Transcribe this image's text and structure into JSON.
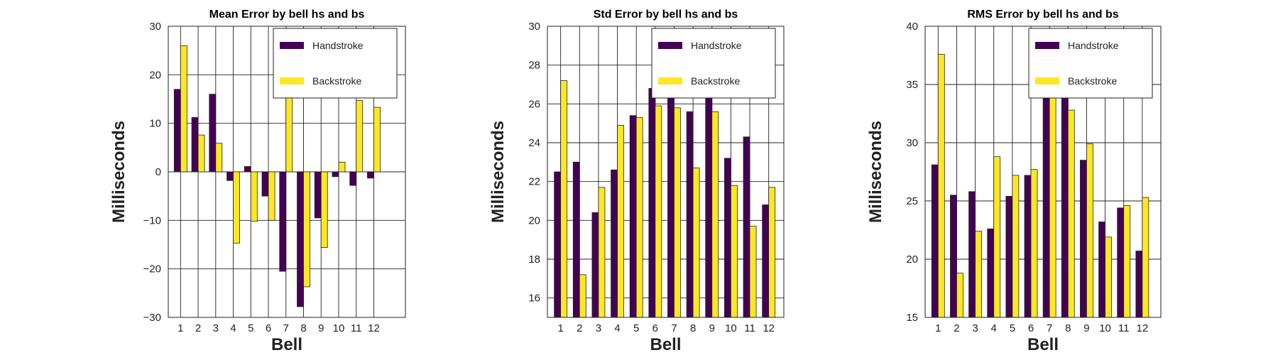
{
  "chart_data": [
    {
      "type": "bar",
      "title": "Mean Error by bell hs and bs",
      "xlabel": "Bell",
      "ylabel": "Milliseconds",
      "categories": [
        "1",
        "2",
        "3",
        "4",
        "5",
        "6",
        "7",
        "8",
        "9",
        "10",
        "11",
        "12"
      ],
      "ylim": [
        -30,
        30
      ],
      "yticks": [
        -30,
        -20,
        -10,
        0,
        10,
        20,
        30
      ],
      "yticklabels": [
        "−30",
        "−20",
        "−10",
        "0",
        "10",
        "20",
        "30"
      ],
      "xlim": [
        0.3,
        13.8
      ],
      "grid": true,
      "legend_position": "top-right",
      "series": [
        {
          "name": "Handstroke",
          "color": "#440154",
          "values": [
            17.0,
            11.2,
            16.0,
            -1.8,
            1.1,
            -5.0,
            -20.5,
            -27.8,
            -9.5,
            -1.0,
            -2.8,
            -1.3
          ]
        },
        {
          "name": "Backstroke",
          "color": "#FDE725",
          "values": [
            26.0,
            7.6,
            5.9,
            -14.7,
            -10.2,
            -10.0,
            25.5,
            -23.7,
            -15.6,
            2.0,
            14.7,
            13.3
          ]
        }
      ]
    },
    {
      "type": "bar",
      "title": "Std Error by bell hs and bs",
      "xlabel": "Bell",
      "ylabel": "Milliseconds",
      "categories": [
        "1",
        "2",
        "3",
        "4",
        "5",
        "6",
        "7",
        "8",
        "9",
        "10",
        "11",
        "12"
      ],
      "ylim": [
        15,
        30
      ],
      "yticks": [
        16,
        18,
        20,
        22,
        24,
        26,
        28,
        30
      ],
      "yticklabels": [
        "16",
        "18",
        "20",
        "22",
        "24",
        "26",
        "28",
        "30"
      ],
      "xlim": [
        0.3,
        12.8
      ],
      "grid": true,
      "legend_position": "top-right",
      "series": [
        {
          "name": "Handstroke",
          "color": "#440154",
          "values": [
            22.5,
            23.0,
            20.4,
            22.6,
            25.4,
            26.8,
            27.6,
            25.6,
            26.9,
            23.2,
            24.3,
            20.8
          ]
        },
        {
          "name": "Backstroke",
          "color": "#FDE725",
          "values": [
            27.2,
            17.2,
            21.7,
            24.9,
            25.3,
            25.9,
            25.8,
            22.7,
            25.6,
            21.8,
            19.7,
            21.7
          ]
        }
      ]
    },
    {
      "type": "bar",
      "title": "RMS Error by bell hs and bs",
      "xlabel": "Bell",
      "ylabel": "Milliseconds",
      "categories": [
        "1",
        "2",
        "3",
        "4",
        "5",
        "6",
        "7",
        "8",
        "9",
        "10",
        "11",
        "12"
      ],
      "ylim": [
        15,
        40
      ],
      "yticks": [
        15,
        20,
        25,
        30,
        35,
        40
      ],
      "yticklabels": [
        "15",
        "20",
        "25",
        "30",
        "35",
        "40"
      ],
      "xlim": [
        0.3,
        13.0
      ],
      "grid": true,
      "legend_position": "top-right",
      "series": [
        {
          "name": "Handstroke",
          "color": "#440154",
          "values": [
            28.1,
            25.5,
            25.8,
            22.6,
            25.4,
            27.2,
            34.4,
            37.7,
            28.5,
            23.2,
            24.4,
            20.7
          ]
        },
        {
          "name": "Backstroke",
          "color": "#FDE725",
          "values": [
            37.6,
            18.8,
            22.4,
            28.8,
            27.2,
            27.7,
            36.3,
            32.8,
            29.9,
            21.9,
            24.6,
            25.3
          ]
        }
      ]
    }
  ]
}
